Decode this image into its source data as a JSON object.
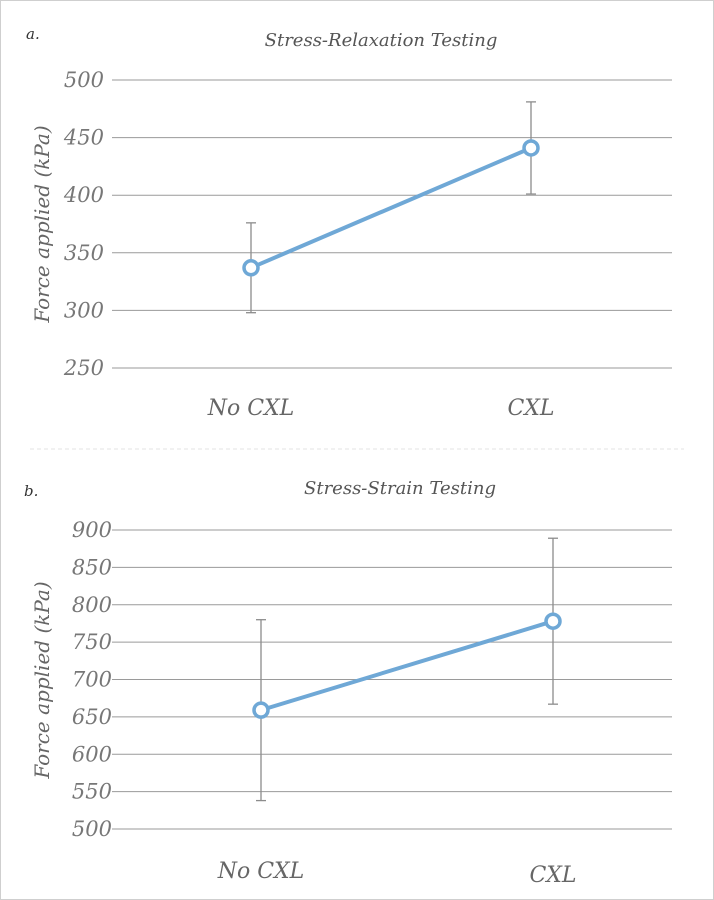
{
  "chart_data": [
    {
      "panel": "a.",
      "type": "line",
      "title": "Stress-Relaxation Testing",
      "ylabel": "Force applied (kPa)",
      "xlabel": "",
      "categories": [
        "No CXL",
        "CXL"
      ],
      "ylim": [
        250,
        500
      ],
      "yticks": [
        250,
        300,
        350,
        400,
        450,
        500
      ],
      "grid": true,
      "legend": "none",
      "series": [
        {
          "values": [
            337,
            441
          ],
          "error_low": [
            298,
            401
          ],
          "error_high": [
            376,
            481
          ]
        }
      ],
      "color": "#6fa8d6"
    },
    {
      "panel": "b.",
      "type": "line",
      "title": "Stress-Strain Testing",
      "ylabel": "Force applied (kPa)",
      "xlabel": "",
      "categories": [
        "No CXL",
        "CXL"
      ],
      "ylim": [
        500,
        900
      ],
      "yticks": [
        500,
        550,
        600,
        650,
        700,
        750,
        800,
        850,
        900
      ],
      "grid": true,
      "legend": "none",
      "series": [
        {
          "values": [
            659,
            778
          ],
          "error_low": [
            538,
            667
          ],
          "error_high": [
            780,
            889
          ]
        }
      ],
      "color": "#6fa8d6"
    }
  ]
}
